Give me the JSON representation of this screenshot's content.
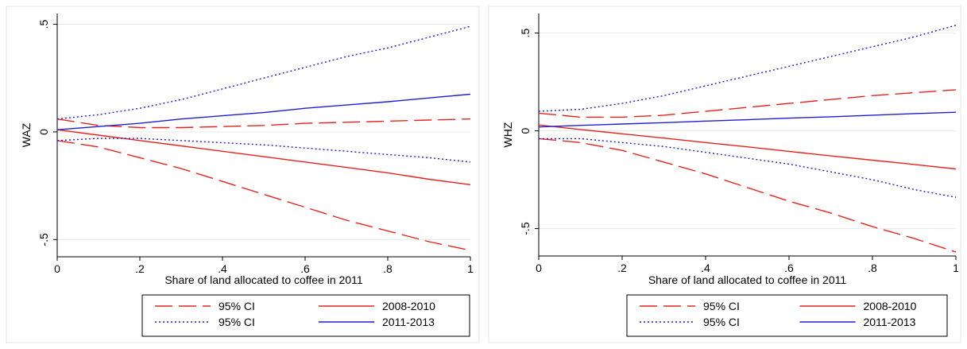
{
  "chart_data": [
    {
      "type": "line",
      "xlabel": "Share of land allocated to coffee in 2011",
      "ylabel": "WAZ",
      "xlim": [
        0,
        1
      ],
      "ylim": [
        -0.58,
        0.55
      ],
      "xticks": [
        0,
        0.2,
        0.4,
        0.6,
        0.8,
        1
      ],
      "xtick_labels": [
        "0",
        ".2",
        ".4",
        ".6",
        ".8",
        "1"
      ],
      "yticks": [
        -0.5,
        0,
        0.5
      ],
      "ytick_labels": [
        "-.5",
        "0",
        ".5"
      ],
      "grid": "horizontal",
      "legend_position": "bottom",
      "x": [
        0,
        0.1,
        0.2,
        0.3,
        0.4,
        0.5,
        0.6,
        0.7,
        0.8,
        0.9,
        1
      ],
      "series": [
        {
          "name": "95% CI",
          "color": "#e8231d",
          "dash": "long-dash",
          "values": [
            0.06,
            0.03,
            0.02,
            0.02,
            0.025,
            0.03,
            0.04,
            0.045,
            0.05,
            0.055,
            0.06
          ]
        },
        {
          "color": "#e8231d",
          "dash": "long-dash",
          "values": [
            -0.04,
            -0.07,
            -0.12,
            -0.17,
            -0.23,
            -0.29,
            -0.35,
            -0.41,
            -0.46,
            -0.51,
            -0.55
          ]
        },
        {
          "name": "2008-2010",
          "color": "#e8231d",
          "dash": "solid",
          "values": [
            0.01,
            -0.015,
            -0.04,
            -0.065,
            -0.09,
            -0.115,
            -0.14,
            -0.165,
            -0.19,
            -0.22,
            -0.245
          ]
        },
        {
          "name": "95% CI",
          "color": "#1f1fd6",
          "dash": "dot",
          "values": [
            0.06,
            0.08,
            0.11,
            0.15,
            0.2,
            0.25,
            0.3,
            0.35,
            0.39,
            0.44,
            0.49
          ]
        },
        {
          "color": "#1f1fd6",
          "dash": "dot",
          "values": [
            -0.04,
            -0.03,
            -0.03,
            -0.04,
            -0.05,
            -0.06,
            -0.075,
            -0.09,
            -0.105,
            -0.12,
            -0.14
          ]
        },
        {
          "name": "2011-2013",
          "color": "#1f1fd6",
          "dash": "solid",
          "values": [
            0.01,
            0.025,
            0.04,
            0.06,
            0.075,
            0.09,
            0.11,
            0.125,
            0.14,
            0.158,
            0.175
          ]
        }
      ]
    },
    {
      "type": "line",
      "xlabel": "Share of land allocated to coffee in 2011",
      "ylabel": "WHZ",
      "xlim": [
        0,
        1
      ],
      "ylim": [
        -0.64,
        0.6
      ],
      "xticks": [
        0,
        0.2,
        0.4,
        0.6,
        0.8,
        1
      ],
      "xtick_labels": [
        "0",
        ".2",
        ".4",
        ".6",
        ".8",
        "1"
      ],
      "yticks": [
        -0.5,
        0,
        0.5
      ],
      "ytick_labels": [
        "-.5",
        "0",
        ".5"
      ],
      "grid": "horizontal",
      "legend_position": "bottom",
      "x": [
        0,
        0.1,
        0.2,
        0.3,
        0.4,
        0.5,
        0.6,
        0.7,
        0.8,
        0.9,
        1
      ],
      "series": [
        {
          "name": "95% CI",
          "color": "#e8231d",
          "dash": "long-dash",
          "values": [
            0.09,
            0.07,
            0.07,
            0.08,
            0.1,
            0.12,
            0.14,
            0.16,
            0.18,
            0.195,
            0.21
          ]
        },
        {
          "color": "#e8231d",
          "dash": "long-dash",
          "values": [
            -0.04,
            -0.06,
            -0.1,
            -0.16,
            -0.22,
            -0.29,
            -0.36,
            -0.42,
            -0.49,
            -0.55,
            -0.62
          ]
        },
        {
          "name": "2008-2010",
          "color": "#e8231d",
          "dash": "solid",
          "values": [
            0.03,
            0.007,
            -0.015,
            -0.037,
            -0.06,
            -0.082,
            -0.105,
            -0.128,
            -0.15,
            -0.172,
            -0.195
          ]
        },
        {
          "name": "95% CI",
          "color": "#1f1fd6",
          "dash": "dot",
          "values": [
            0.1,
            0.11,
            0.14,
            0.18,
            0.23,
            0.28,
            0.33,
            0.38,
            0.43,
            0.48,
            0.54
          ]
        },
        {
          "color": "#1f1fd6",
          "dash": "dot",
          "values": [
            -0.04,
            -0.04,
            -0.06,
            -0.08,
            -0.11,
            -0.14,
            -0.17,
            -0.21,
            -0.25,
            -0.3,
            -0.34
          ]
        },
        {
          "name": "2011-2013",
          "color": "#1f1fd6",
          "dash": "solid",
          "values": [
            0.02,
            0.028,
            0.035,
            0.042,
            0.05,
            0.057,
            0.065,
            0.072,
            0.08,
            0.088,
            0.095
          ]
        }
      ]
    }
  ],
  "legend": {
    "items": [
      {
        "label": "95% CI",
        "color": "#e8231d",
        "dash": "long-dash"
      },
      {
        "label": "2008-2010",
        "color": "#e8231d",
        "dash": "solid"
      },
      {
        "label": "95% CI",
        "color": "#1f1fd6",
        "dash": "dot"
      },
      {
        "label": "2011-2013",
        "color": "#1f1fd6",
        "dash": "solid"
      }
    ]
  }
}
